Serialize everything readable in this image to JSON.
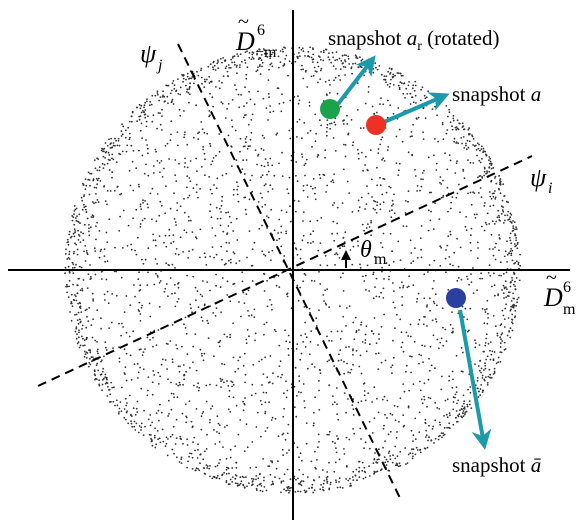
{
  "axes": {
    "horizontal": {
      "symbol": "D",
      "sup": "6",
      "sub": "m"
    },
    "vertical": {
      "symbol": "D",
      "sup": "6",
      "sub": "−m"
    },
    "psi_i": {
      "symbol": "ψ",
      "sub": "i"
    },
    "psi_j": {
      "symbol": "ψ",
      "sub": "j"
    },
    "angle": {
      "symbol": "θ",
      "sub": "m"
    }
  },
  "snapshots": [
    {
      "name": "green",
      "label_main": "snapshot ",
      "label_var": "a",
      "label_sub": "r",
      "label_tail": " (rotated)",
      "color": "#1aa34a"
    },
    {
      "name": "red",
      "label_main": "snapshot ",
      "label_var": "a",
      "label_sub": "",
      "label_tail": "",
      "color": "#ee3124"
    },
    {
      "name": "blue",
      "label_main": "snapshot ",
      "label_var": "ā",
      "label_sub": "",
      "label_tail": "",
      "color": "#2b3f9e"
    }
  ],
  "colors": {
    "arrow": "#1b9aaa",
    "points": "#333333",
    "axes": "#000000"
  }
}
